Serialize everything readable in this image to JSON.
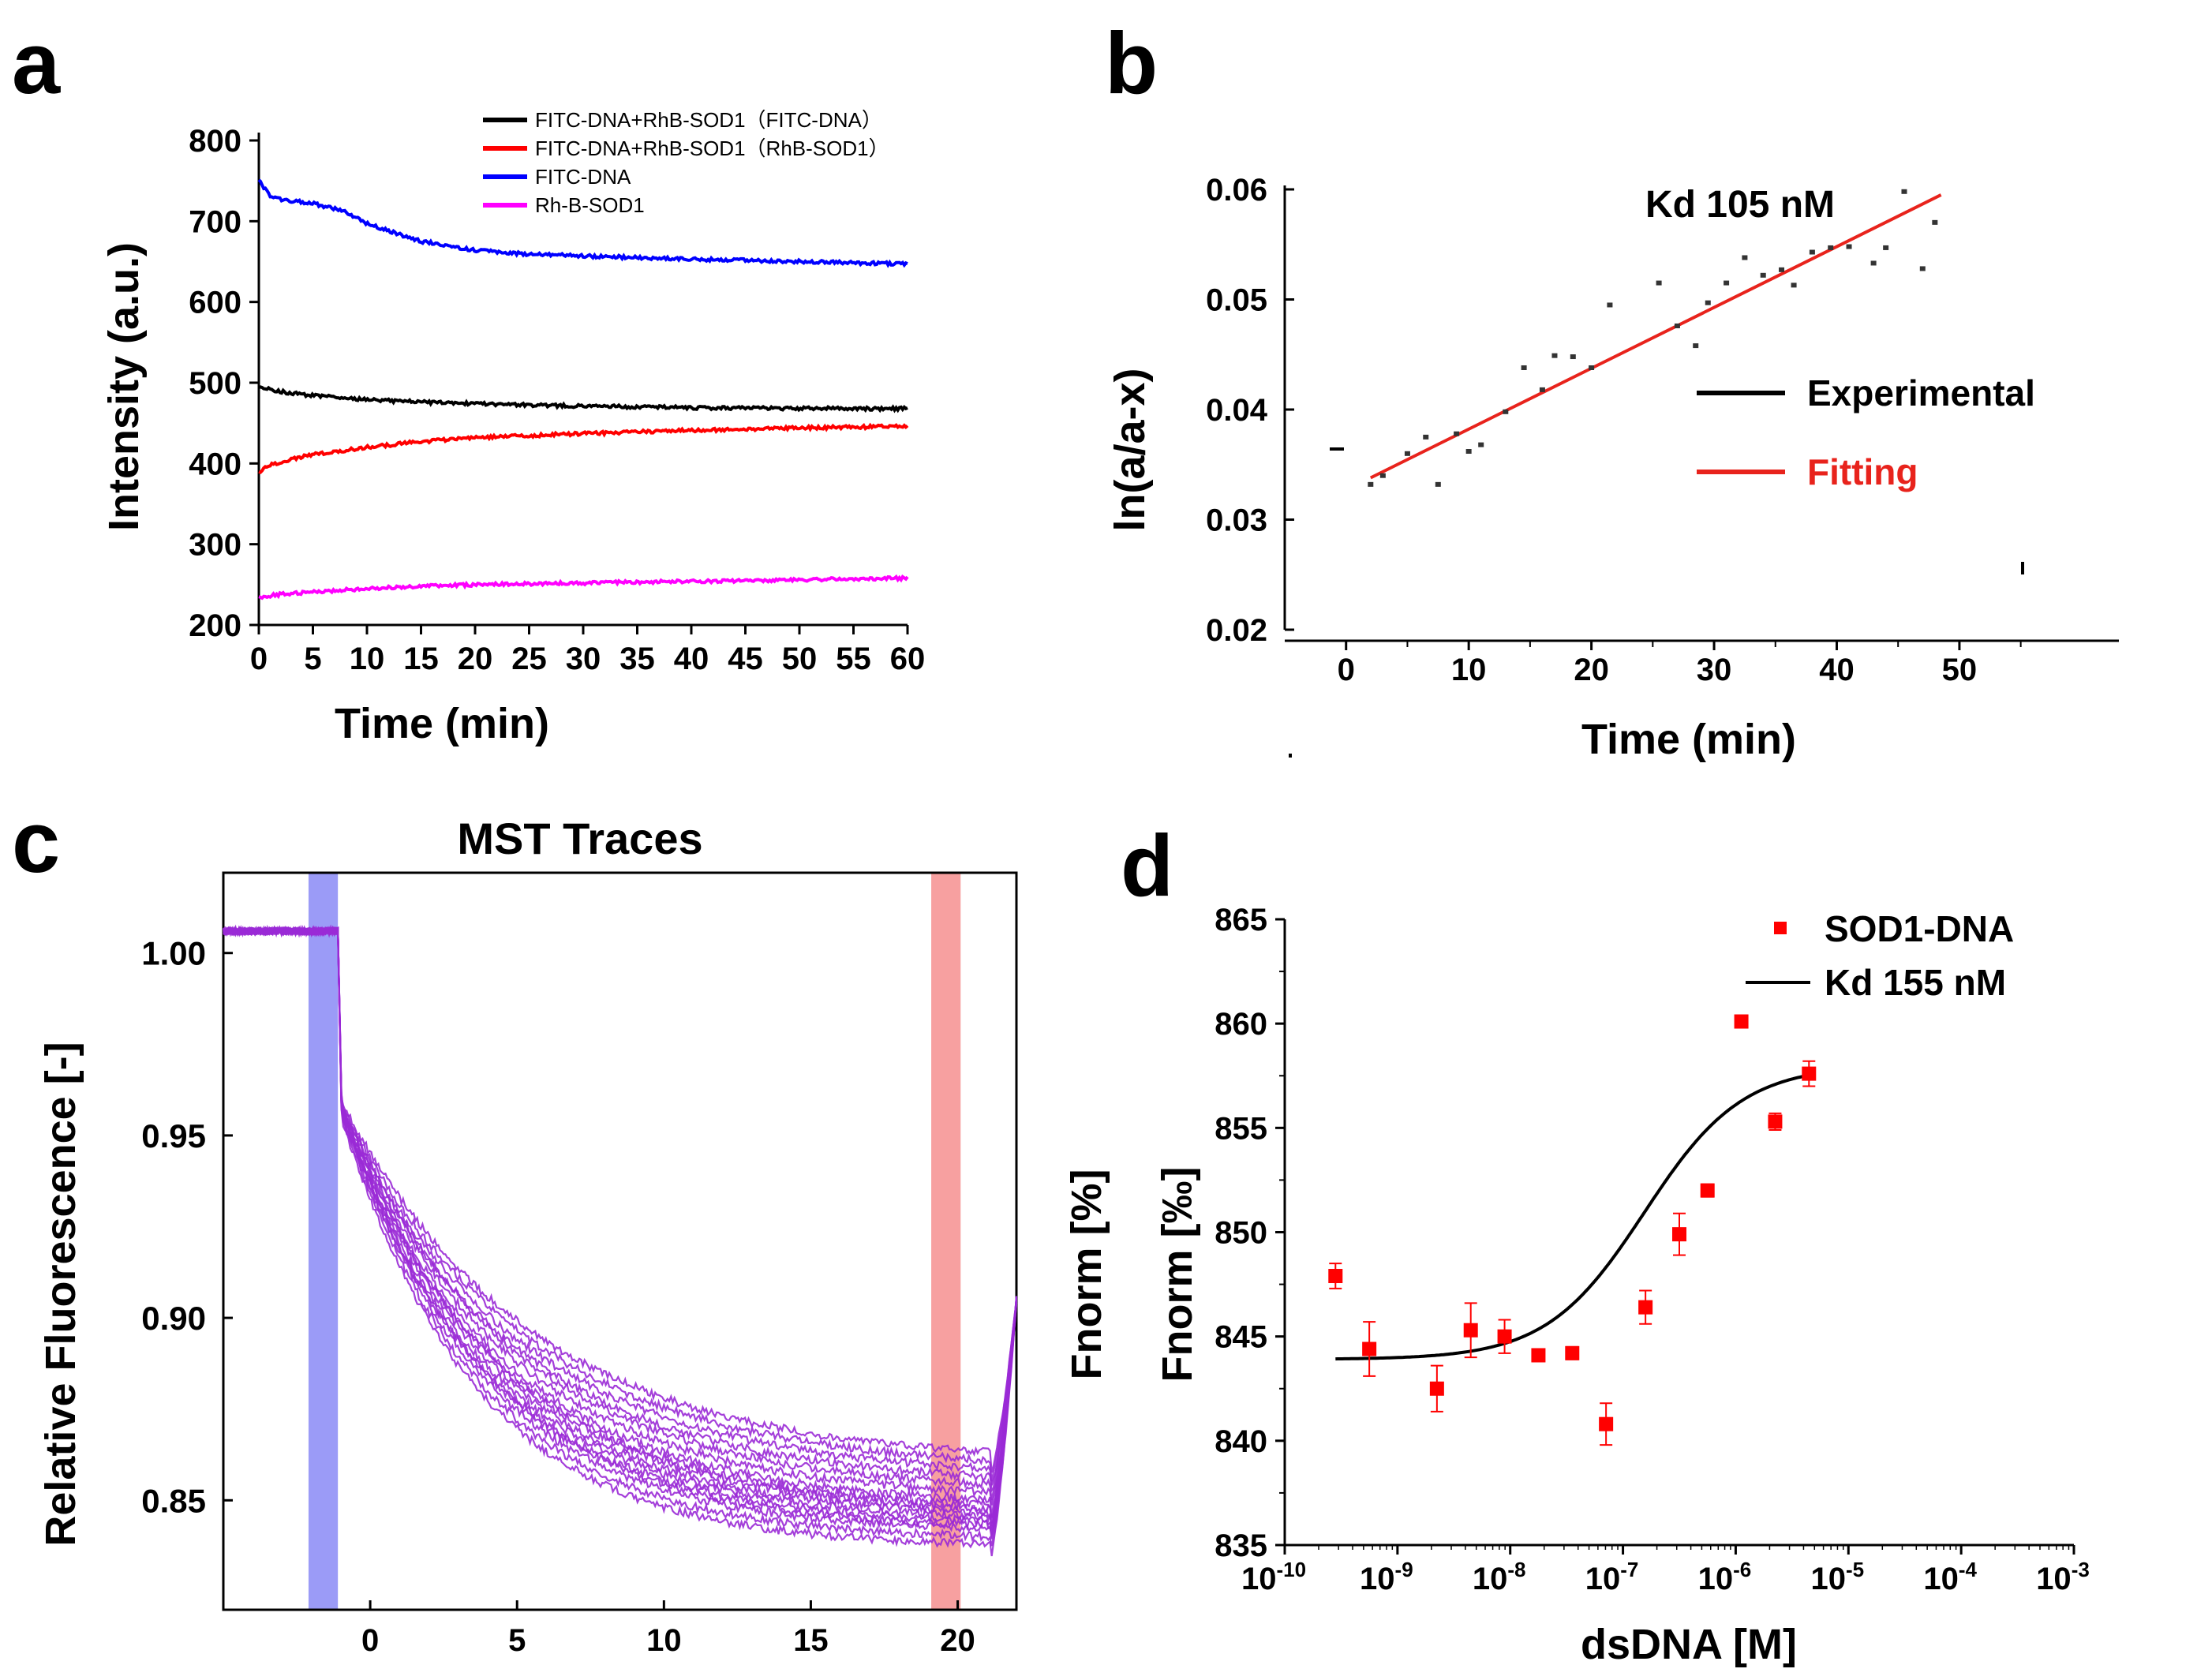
{
  "panels": {
    "a": {
      "label": "a"
    },
    "b": {
      "label": "b"
    },
    "c": {
      "label": "c"
    },
    "d": {
      "label": "d"
    }
  },
  "chart_data": [
    {
      "id": "a",
      "type": "line",
      "title": "",
      "xlabel": "Time (min)",
      "ylabel": "Intensity (a.u.)",
      "xlim": [
        0,
        60
      ],
      "ylim": [
        200,
        800
      ],
      "xticks": [
        0,
        5,
        10,
        15,
        20,
        25,
        30,
        35,
        40,
        45,
        50,
        55,
        60
      ],
      "yticks": [
        200,
        300,
        400,
        500,
        600,
        700,
        800
      ],
      "legend_position": "top-right",
      "series": [
        {
          "name": "FITC-DNA+RhB-SOD1（FITC-DNA）",
          "color": "#000000",
          "x": [
            0,
            1,
            2,
            5,
            10,
            15,
            20,
            30,
            40,
            50,
            60
          ],
          "y": [
            496,
            492,
            489,
            484,
            479,
            476,
            474,
            471,
            469,
            468,
            468
          ]
        },
        {
          "name": "FITC-DNA+RhB-SOD1（RhB-SOD1）",
          "color": "#ff0000",
          "x": [
            0,
            1,
            2,
            5,
            10,
            15,
            20,
            30,
            40,
            50,
            60
          ],
          "y": [
            389,
            398,
            402,
            411,
            420,
            427,
            432,
            437,
            441,
            444,
            446
          ]
        },
        {
          "name": "FITC-DNA",
          "color": "#0000ff",
          "x": [
            0,
            1,
            2,
            5,
            8,
            10,
            15,
            20,
            25,
            30,
            40,
            50,
            60
          ],
          "y": [
            750,
            732,
            727,
            722,
            712,
            697,
            675,
            664,
            659,
            657,
            653,
            650,
            647
          ]
        },
        {
          "name": "Rh-B-SOD1",
          "color": "#ff00ff",
          "x": [
            0,
            2,
            5,
            10,
            15,
            20,
            30,
            40,
            50,
            60
          ],
          "y": [
            234,
            238,
            241,
            245,
            248,
            250,
            252,
            254,
            256,
            258
          ]
        }
      ]
    },
    {
      "id": "b",
      "type": "scatter",
      "title": "",
      "annotation": "Kd 105 nM",
      "xlabel": "Time (min)",
      "ylabel": "ln(a/a-x)",
      "xlim": [
        -5,
        63
      ],
      "ylim": [
        0.02,
        0.06
      ],
      "xticks": [
        0,
        10,
        20,
        30,
        40,
        50
      ],
      "yticks": [
        0.02,
        0.03,
        0.04,
        0.05,
        0.06
      ],
      "ytick_labels": [
        "0.02",
        "0.03",
        "0.04",
        "0.05",
        "0.06"
      ],
      "legend": [
        {
          "name": "Experimental",
          "color": "#000000"
        },
        {
          "name": "Fitting",
          "color": "#e8231c"
        }
      ],
      "series": [
        {
          "name": "Experimental",
          "color": "#000000",
          "x": [
            2,
            3,
            5,
            6.5,
            7.5,
            9,
            10,
            11,
            13,
            14.5,
            16,
            17,
            18.5,
            20,
            21.5,
            25.5,
            27,
            28.5,
            29.5,
            31,
            32.5,
            34,
            35.5,
            36.5,
            38,
            39.5,
            41,
            43,
            44,
            45.5,
            47,
            48
          ],
          "y": [
            0.0332,
            0.034,
            0.036,
            0.0375,
            0.0332,
            0.0378,
            0.0362,
            0.0368,
            0.0398,
            0.0438,
            0.0418,
            0.0449,
            0.0448,
            0.0438,
            0.0495,
            0.0515,
            0.0476,
            0.0458,
            0.0497,
            0.0515,
            0.0538,
            0.0522,
            0.0527,
            0.0513,
            0.0543,
            0.0547,
            0.0548,
            0.0533,
            0.0547,
            0.0598,
            0.0528,
            0.057
          ]
        },
        {
          "name": "Fitting",
          "color": "#e8231c",
          "type": "line",
          "x": [
            2,
            48.5
          ],
          "y": [
            0.0338,
            0.0595
          ]
        }
      ]
    },
    {
      "id": "c",
      "type": "line",
      "title": "MST Traces",
      "xlabel": "",
      "ylabel": "Relative Fluorescence [-]",
      "xlim": [
        -5,
        22
      ],
      "ylim": [
        0.82,
        1.022
      ],
      "xticks": [
        0,
        5,
        10,
        15,
        20
      ],
      "yticks": [
        0.85,
        0.9,
        0.95,
        1.0
      ],
      "ytick_labels": [
        "0.85",
        "0.90",
        "0.95",
        "1.00"
      ],
      "cold_region": [
        -2.1,
        -1.1
      ],
      "hot_region": [
        19.1,
        20.1
      ],
      "cold_color": "#9b9bf7",
      "hot_color": "#f7a0a0",
      "trace_color": "#9a2ad6",
      "n_traces": 16,
      "baseline": 1.006,
      "laser_on": -1.1,
      "laser_off": 21.1,
      "end_values": [
        0.834,
        0.836,
        0.838,
        0.839,
        0.84,
        0.841,
        0.842,
        0.843,
        0.844,
        0.845,
        0.847,
        0.849,
        0.851,
        0.853,
        0.855,
        0.857
      ],
      "post_laser_value": 0.905
    },
    {
      "id": "d",
      "type": "scatter",
      "title": "",
      "xlabel": "dsDNA [M]",
      "ylabel": "Fnorm [‰]",
      "ylabel_outer": "Fnorm [%]",
      "xscale": "log",
      "xlim_exp": [
        -10,
        -3
      ],
      "ylim": [
        835,
        865
      ],
      "xtick_exponents": [
        "-10",
        "-9",
        "-8",
        "-7",
        "-6",
        "-5",
        "-4",
        "-3"
      ],
      "yticks": [
        835,
        840,
        845,
        850,
        855,
        860,
        865
      ],
      "legend_position": "top-right",
      "series": [
        {
          "name": "SOD1-DNA",
          "color": "#ff0000",
          "marker": "square",
          "log_x": [
            -9.55,
            -9.25,
            -8.65,
            -8.35,
            -8.05,
            -7.75,
            -7.45,
            -7.15,
            -6.8,
            -6.5,
            -6.25,
            -5.95,
            -5.65,
            -5.35
          ],
          "y": [
            847.9,
            844.4,
            842.5,
            845.3,
            845.0,
            844.1,
            844.2,
            840.8,
            846.4,
            849.9,
            852.0,
            860.1,
            855.3,
            857.6
          ],
          "err": [
            0.6,
            1.3,
            1.1,
            1.3,
            0.8,
            0.3,
            0.3,
            1.0,
            0.8,
            1.0,
            0.3,
            0.3,
            0.4,
            0.6
          ]
        },
        {
          "name": "Kd 155 nM",
          "color": "#000000",
          "type": "fit",
          "kd": 1.55e-07,
          "bottom": 843.9,
          "top": 858.0,
          "log_x_range": [
            -9.55,
            -5.35
          ]
        }
      ]
    }
  ]
}
